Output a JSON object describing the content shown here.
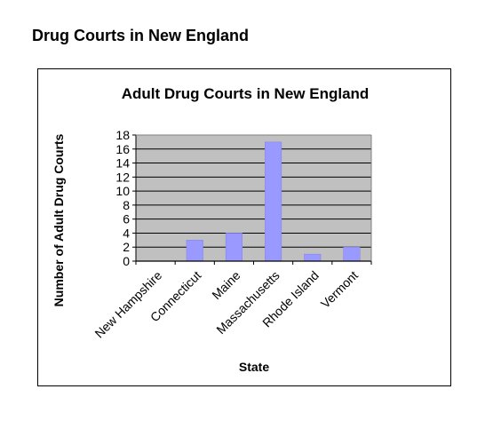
{
  "page": {
    "heading": "Drug Courts in New England"
  },
  "chart_data": {
    "type": "bar",
    "title": "Adult Drug Courts in New England",
    "xlabel": "State",
    "ylabel": "Number of Adult Drug Courts",
    "categories": [
      "New Hampshire",
      "Connecticut",
      "Maine",
      "Massachusetts",
      "Rhode Island",
      "Vermont"
    ],
    "values": [
      0,
      3,
      4,
      17,
      1,
      2
    ],
    "ylim": [
      0,
      18
    ],
    "yticks": [
      0,
      2,
      4,
      6,
      8,
      10,
      12,
      14,
      16,
      18
    ],
    "grid": true,
    "legend": "none",
    "colors": {
      "bar": "#9999ff",
      "bar_edge": "#8080e6",
      "plot_background": "#c0c0c0",
      "gridline": "#000000"
    }
  }
}
